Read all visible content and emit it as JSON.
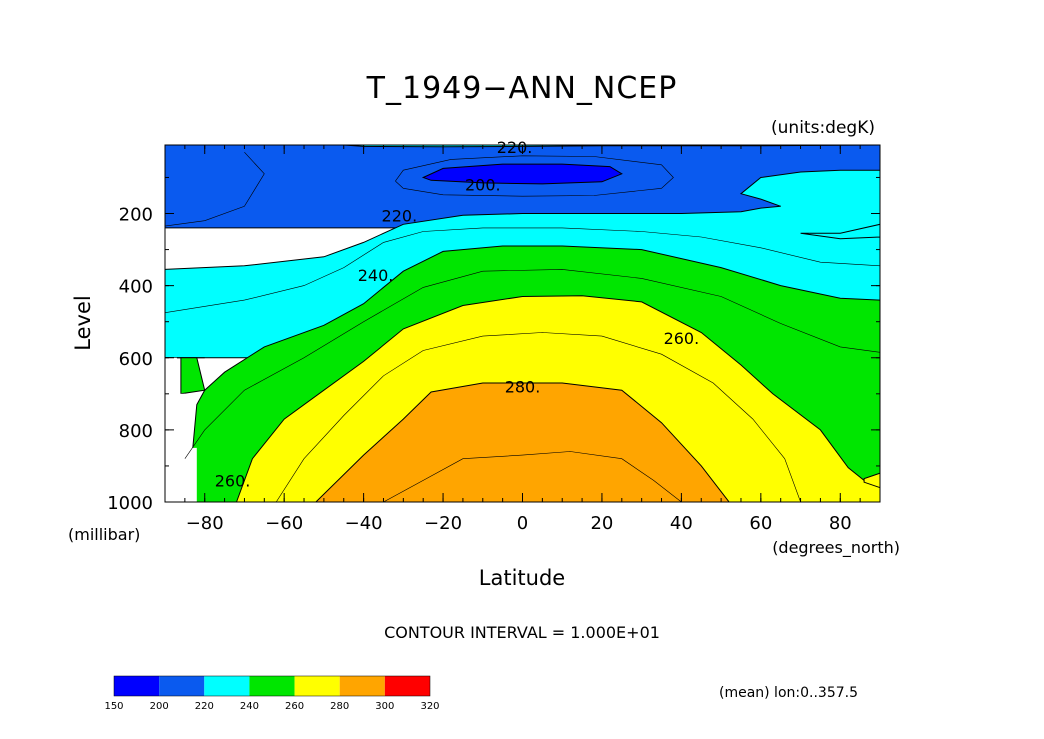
{
  "chart_data": {
    "type": "heatmap",
    "title": "T_1949−ANN_NCEP",
    "units_label": "(units:degK)",
    "xlabel": "Latitude",
    "xunits_label": "(degrees_north)",
    "ylabel": "Level",
    "yunits_label": "(millibar)",
    "xlim": [
      -90,
      90
    ],
    "ylim": [
      1000,
      10
    ],
    "y_reversed": true,
    "x_ticks": [
      -80,
      -60,
      -40,
      -20,
      0,
      20,
      40,
      60,
      80
    ],
    "x_tick_labels": [
      "−80",
      "−60",
      "−40",
      "−20",
      "0",
      "20",
      "40",
      "60",
      "80"
    ],
    "y_ticks": [
      200,
      400,
      600,
      800,
      1000
    ],
    "y_tick_labels": [
      "200",
      "400",
      "600",
      "800",
      "1000"
    ],
    "contour_interval_label": "CONTOUR INTERVAL = 1.000E+01",
    "footnote": "(mean) lon:0..357.5",
    "levels": [
      150,
      200,
      220,
      240,
      260,
      280,
      300,
      320
    ],
    "colorbar_labels": [
      "150",
      "200",
      "220",
      "240",
      "260",
      "280",
      "300",
      "320"
    ],
    "level_colors": [
      "#0000ff",
      "#0a5aef",
      "#00ffff",
      "#00e600",
      "#ffff00",
      "#ffa500",
      "#ff0000"
    ],
    "contour_labels": [
      {
        "text": "220.",
        "lat": -2,
        "lev": 15
      },
      {
        "text": "200.",
        "lat": -10,
        "lev": 120
      },
      {
        "text": "220.",
        "lat": -31,
        "lev": 205
      },
      {
        "text": "240.",
        "lat": -37,
        "lev": 370
      },
      {
        "text": "260.",
        "lat": 40,
        "lev": 545
      },
      {
        "text": "280.",
        "lat": 0,
        "lev": 680
      },
      {
        "text": "260.",
        "lat": -73,
        "lev": 940
      }
    ],
    "regions": [
      {
        "range": "200-220",
        "color": "#0a5aef",
        "points": [
          [
            -90,
            10
          ],
          [
            90,
            10
          ],
          [
            90,
            240
          ],
          [
            -90,
            240
          ]
        ]
      },
      {
        "range": "150-200",
        "color": "#0000ff",
        "points": [
          [
            -25,
            100
          ],
          [
            -20,
            75
          ],
          [
            -5,
            63
          ],
          [
            10,
            63
          ],
          [
            22,
            70
          ],
          [
            25,
            90
          ],
          [
            20,
            112
          ],
          [
            5,
            118
          ],
          [
            -10,
            115
          ],
          [
            -23,
            108
          ]
        ]
      },
      {
        "range": "220-240",
        "color": "#00ffff",
        "points": [
          [
            -45,
            10
          ],
          [
            -40,
            8
          ],
          [
            -20,
            8
          ],
          [
            0,
            8
          ],
          [
            20,
            8
          ],
          [
            40,
            8
          ],
          [
            60,
            8
          ],
          [
            90,
            8
          ],
          [
            90,
            10
          ],
          [
            60,
            12
          ],
          [
            40,
            12
          ],
          [
            20,
            12
          ],
          [
            0,
            14
          ],
          [
            -20,
            15
          ],
          [
            -40,
            14
          ]
        ]
      },
      {
        "range": "220-240",
        "color": "#00ffff",
        "points": [
          [
            -90,
            355
          ],
          [
            -70,
            345
          ],
          [
            -50,
            320
          ],
          [
            -40,
            280
          ],
          [
            -30,
            230
          ],
          [
            -15,
            205
          ],
          [
            0,
            200
          ],
          [
            20,
            200
          ],
          [
            40,
            200
          ],
          [
            55,
            195
          ],
          [
            60,
            185
          ],
          [
            65,
            180
          ],
          [
            60,
            160
          ],
          [
            55,
            145
          ],
          [
            60,
            100
          ],
          [
            70,
            85
          ],
          [
            80,
            80
          ],
          [
            90,
            80
          ],
          [
            90,
            265
          ],
          [
            80,
            270
          ],
          [
            70,
            255
          ],
          [
            80,
            255
          ],
          [
            90,
            230
          ],
          [
            90,
            600
          ],
          [
            -90,
            600
          ]
        ]
      },
      {
        "range": "220-240",
        "color": "#00ffff",
        "points": [
          [
            -90,
            600
          ],
          [
            -80,
            600
          ],
          [
            -85,
            600
          ],
          [
            -90,
            600
          ]
        ]
      },
      {
        "range": "240-260",
        "color": "#00e600",
        "points": [
          [
            -86,
            1000
          ],
          [
            -83,
            850
          ],
          [
            -82,
            730
          ],
          [
            -80,
            690
          ],
          [
            -75,
            640
          ],
          [
            -65,
            570
          ],
          [
            -50,
            510
          ],
          [
            -40,
            450
          ],
          [
            -30,
            360
          ],
          [
            -20,
            305
          ],
          [
            -5,
            290
          ],
          [
            10,
            290
          ],
          [
            30,
            300
          ],
          [
            50,
            350
          ],
          [
            65,
            400
          ],
          [
            80,
            435
          ],
          [
            90,
            440
          ],
          [
            90,
            1000
          ]
        ]
      },
      {
        "range": "240-260",
        "color": "#00e600",
        "points": [
          [
            -86,
            600
          ],
          [
            -82,
            600
          ],
          [
            -80,
            690
          ],
          [
            -86,
            700
          ]
        ]
      },
      {
        "range": "260-280",
        "color": "#ffff00",
        "points": [
          [
            -72,
            1000
          ],
          [
            -68,
            880
          ],
          [
            -60,
            770
          ],
          [
            -50,
            690
          ],
          [
            -40,
            610
          ],
          [
            -30,
            520
          ],
          [
            -15,
            455
          ],
          [
            0,
            430
          ],
          [
            15,
            428
          ],
          [
            30,
            445
          ],
          [
            45,
            530
          ],
          [
            55,
            620
          ],
          [
            63,
            700
          ],
          [
            75,
            800
          ],
          [
            82,
            905
          ],
          [
            86,
            940
          ],
          [
            90,
            950
          ],
          [
            90,
            1000
          ]
        ]
      },
      {
        "range": "260-280",
        "color": "#ffff00",
        "points": [
          [
            86,
            935
          ],
          [
            90,
            920
          ],
          [
            90,
            960
          ],
          [
            86,
            945
          ]
        ]
      },
      {
        "range": "280-300",
        "color": "#ffa500",
        "points": [
          [
            -52,
            1000
          ],
          [
            -40,
            870
          ],
          [
            -30,
            770
          ],
          [
            -23,
            695
          ],
          [
            -10,
            670
          ],
          [
            10,
            670
          ],
          [
            25,
            690
          ],
          [
            35,
            780
          ],
          [
            45,
            900
          ],
          [
            52,
            1000
          ]
        ]
      },
      {
        "range": "missing",
        "color": "#ffffff",
        "points": [
          [
            -90,
            600
          ],
          [
            -87,
            600
          ],
          [
            -87,
            700
          ],
          [
            -85,
            700
          ],
          [
            -85,
            850
          ],
          [
            -82,
            850
          ],
          [
            -82,
            1000
          ],
          [
            -90,
            1000
          ]
        ]
      }
    ],
    "contour_lines": [
      {
        "level": 210,
        "points": [
          [
            -32,
            110
          ],
          [
            -30,
            80
          ],
          [
            -18,
            50
          ],
          [
            0,
            40
          ],
          [
            18,
            42
          ],
          [
            35,
            65
          ],
          [
            38,
            100
          ],
          [
            35,
            130
          ],
          [
            18,
            150
          ],
          [
            0,
            152
          ],
          [
            -20,
            148
          ],
          [
            -30,
            130
          ],
          [
            -32,
            110
          ]
        ]
      },
      {
        "level": 230,
        "points": [
          [
            -90,
            475
          ],
          [
            -70,
            440
          ],
          [
            -55,
            400
          ],
          [
            -45,
            350
          ],
          [
            -35,
            280
          ],
          [
            -25,
            250
          ],
          [
            -10,
            240
          ],
          [
            10,
            240
          ],
          [
            30,
            250
          ],
          [
            45,
            265
          ],
          [
            60,
            295
          ],
          [
            75,
            335
          ],
          [
            90,
            345
          ]
        ]
      },
      {
        "level": 230,
        "points": [
          [
            -70,
            30
          ],
          [
            -65,
            90
          ],
          [
            -70,
            180
          ],
          [
            -80,
            220
          ],
          [
            -90,
            235
          ]
        ]
      },
      {
        "level": 250,
        "points": [
          [
            -85,
            880
          ],
          [
            -80,
            800
          ],
          [
            -70,
            690
          ],
          [
            -55,
            600
          ],
          [
            -40,
            500
          ],
          [
            -25,
            405
          ],
          [
            -10,
            360
          ],
          [
            10,
            355
          ],
          [
            30,
            380
          ],
          [
            50,
            430
          ],
          [
            65,
            505
          ],
          [
            80,
            570
          ],
          [
            90,
            585
          ]
        ]
      },
      {
        "level": 270,
        "points": [
          [
            -62,
            1000
          ],
          [
            -55,
            880
          ],
          [
            -45,
            760
          ],
          [
            -35,
            650
          ],
          [
            -25,
            580
          ],
          [
            -10,
            540
          ],
          [
            5,
            530
          ],
          [
            20,
            540
          ],
          [
            35,
            590
          ],
          [
            48,
            670
          ],
          [
            58,
            770
          ],
          [
            66,
            880
          ],
          [
            70,
            1000
          ]
        ]
      },
      {
        "level": 290,
        "points": [
          [
            -35,
            1000
          ],
          [
            -25,
            940
          ],
          [
            -15,
            880
          ],
          [
            0,
            870
          ],
          [
            12,
            860
          ],
          [
            25,
            880
          ],
          [
            33,
            940
          ],
          [
            40,
            1000
          ]
        ]
      }
    ]
  }
}
